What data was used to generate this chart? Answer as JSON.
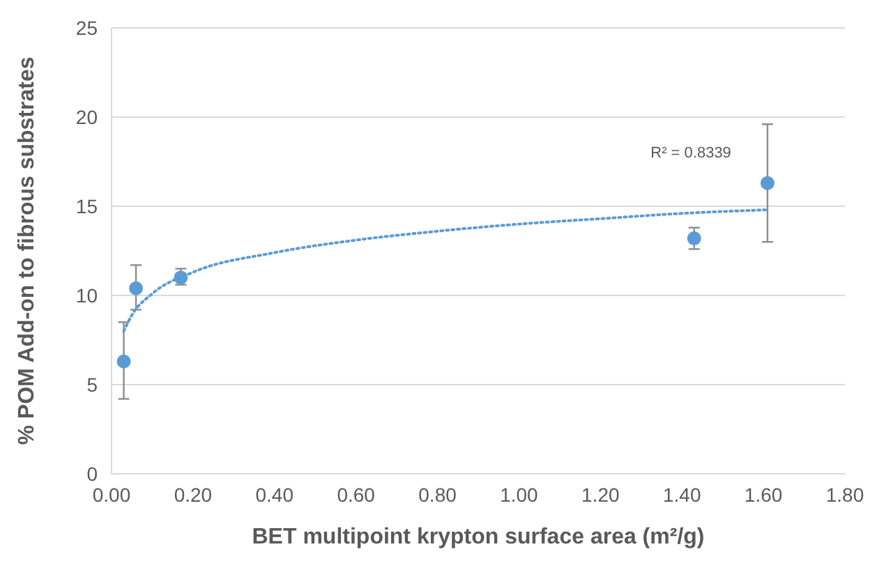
{
  "chart_data": {
    "type": "scatter",
    "xlabel": "BET multipoint krypton surface area (m²/g)",
    "ylabel": "% POM Add-on to fibrous substrates",
    "xlim": [
      0,
      1.8
    ],
    "xticks": [
      {
        "value": 0,
        "label": "0.00"
      },
      {
        "value": 0.2,
        "label": "0.20"
      },
      {
        "value": 0.4,
        "label": "0.40"
      },
      {
        "value": 0.6,
        "label": "0.60"
      },
      {
        "value": 0.8,
        "label": "0.80"
      },
      {
        "value": 1,
        "label": "1.00"
      },
      {
        "value": 1.2,
        "label": "1.20"
      },
      {
        "value": 1.4,
        "label": "1.40"
      },
      {
        "value": 1.6,
        "label": "1.60"
      },
      {
        "value": 1.8,
        "label": "1.80"
      }
    ],
    "ylim": [
      0,
      25
    ],
    "yticks": [
      0,
      5,
      10,
      15,
      20,
      25
    ],
    "grid": "y",
    "series": [
      {
        "color": "#5b9bd5",
        "marker": "circle",
        "x": [
          0.03,
          0.06,
          0.17,
          1.43,
          1.61
        ],
        "values": [
          6.3,
          10.4,
          11.0,
          13.2,
          16.3
        ],
        "errors": [
          [
            4.2,
            8.5
          ],
          [
            9.2,
            11.7
          ],
          [
            10.6,
            11.5
          ],
          [
            12.6,
            13.8
          ],
          [
            13.0,
            19.6
          ]
        ]
      },
      {
        "type": "line",
        "color": "#5b9bd5",
        "marker": "none",
        "line_style": "dotted",
        "x": [
          0.03,
          0.05,
          0.1,
          0.2,
          0.4,
          0.6,
          0.8,
          1.0,
          1.2,
          1.4,
          1.61
        ],
        "values": [
          8.0,
          8.9,
          10.1,
          11.3,
          12.4,
          13.1,
          13.6,
          14.0,
          14.3,
          14.6,
          14.8
        ]
      }
    ],
    "annotations": [
      "R² = 0.8339"
    ]
  }
}
